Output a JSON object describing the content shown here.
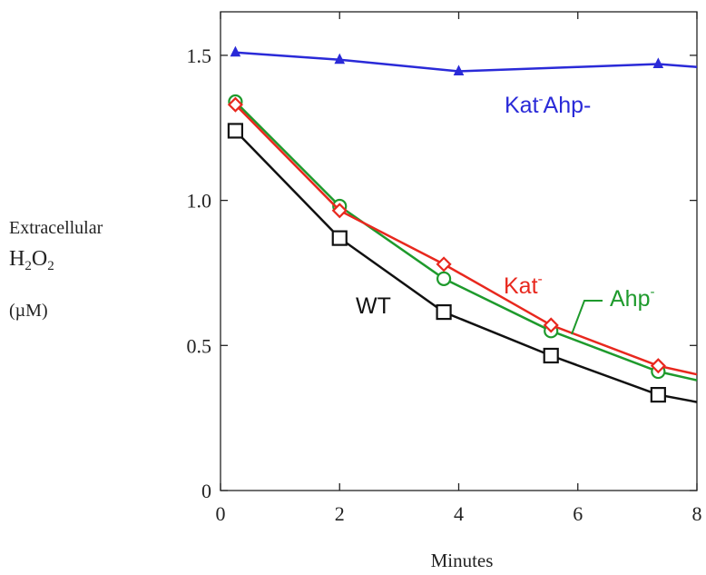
{
  "chart_data": {
    "type": "line",
    "title": "",
    "xlabel": "Minutes",
    "ylabel": {
      "line1": "Extracellular",
      "h": "H",
      "two_a": "2",
      "o": "O",
      "two_b": "2",
      "unit": "(µM)"
    },
    "xlim": [
      0,
      8
    ],
    "ylim": [
      0,
      1.65
    ],
    "xticks": [
      0,
      2,
      4,
      6,
      8
    ],
    "xtick_labels": [
      "0",
      "2",
      "4",
      "6",
      "8"
    ],
    "yticks": [
      0,
      0.5,
      1.0,
      1.5
    ],
    "ytick_labels": [
      "0",
      "0.5",
      "1.0",
      "1.5"
    ],
    "grid": false,
    "series": [
      {
        "name": "Kat-Ahp-",
        "color": "#2a2ad8",
        "marker": "triangle",
        "x": [
          0.25,
          2.0,
          4.0,
          6.0,
          7.35,
          8.0
        ],
        "y": [
          1.51,
          1.485,
          1.445,
          1.46,
          1.47,
          1.46
        ],
        "marker_idx": [
          0,
          1,
          2,
          4
        ]
      },
      {
        "name": "Ahp-",
        "color": "#1e9a2c",
        "marker": "circle",
        "x": [
          0.25,
          2.0,
          3.75,
          5.55,
          7.35,
          8.0
        ],
        "y": [
          1.34,
          0.98,
          0.73,
          0.55,
          0.41,
          0.38
        ],
        "marker_idx": [
          0,
          1,
          2,
          3,
          4
        ]
      },
      {
        "name": "Kat-",
        "color": "#e8281e",
        "marker": "diamond",
        "x": [
          0.25,
          2.0,
          3.75,
          5.55,
          7.35,
          8.0
        ],
        "y": [
          1.33,
          0.965,
          0.78,
          0.57,
          0.43,
          0.4
        ],
        "marker_idx": [
          0,
          1,
          2,
          3,
          4
        ]
      },
      {
        "name": "WT",
        "color": "#111111",
        "marker": "square",
        "x": [
          0.25,
          2.0,
          3.75,
          5.55,
          7.35,
          8.0
        ],
        "y": [
          1.24,
          0.87,
          0.615,
          0.465,
          0.33,
          0.305
        ],
        "marker_idx": [
          0,
          1,
          2,
          3,
          4
        ]
      }
    ],
    "annotations": {
      "katahp": {
        "kat": "Kat",
        "sup": "-",
        "ahp": "Ahp-",
        "color": "#2a2ad8"
      },
      "kat": {
        "text": "Kat",
        "sup": "-",
        "color": "#e8281e"
      },
      "ahp": {
        "text": "Ahp",
        "sup": "-",
        "color": "#1e9a2c"
      },
      "wt": {
        "text": "WT",
        "color": "#111111"
      }
    }
  }
}
